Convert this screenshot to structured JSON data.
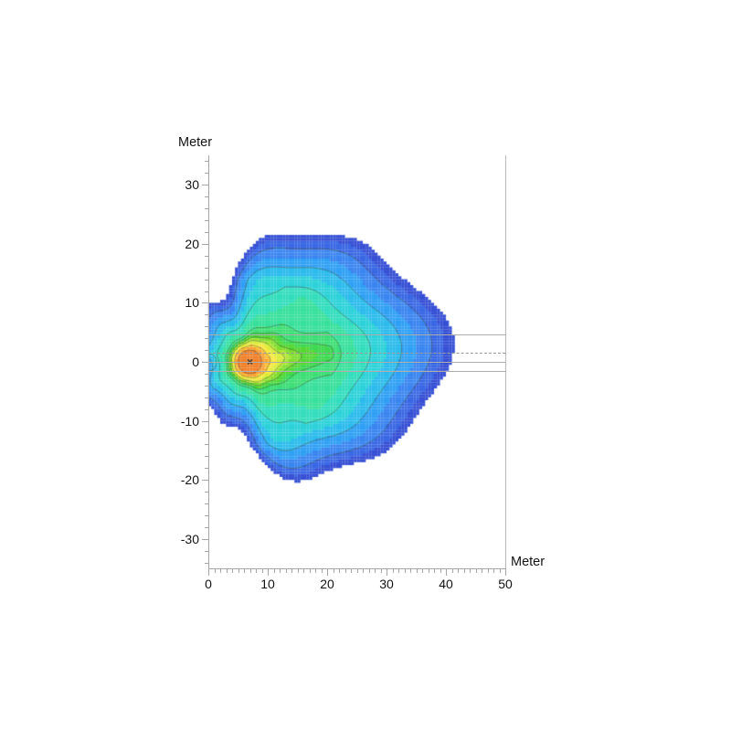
{
  "figure": {
    "background": "#ffffff"
  },
  "axes": {
    "y": {
      "label": "Meter",
      "range_m": [
        -35,
        35
      ],
      "major_ticks": [
        30,
        20,
        10,
        0,
        -10,
        -20,
        -30
      ],
      "minor_step_m": 2,
      "minor_range_m": [
        -34,
        34
      ]
    },
    "x": {
      "label": "Meter",
      "range_m": [
        0,
        50
      ],
      "major_ticks": [
        0,
        10,
        20,
        30,
        40,
        50
      ],
      "minor_step_m": 1
    },
    "axis_color": "#a6a6a6",
    "tick_color": "#a6a6a6",
    "label_color": "#131313"
  },
  "reference_lines": [
    {
      "y_m": 4.5,
      "style": "solid",
      "color": "#adadad"
    },
    {
      "y_m": 1.45,
      "style": "dashed",
      "color": "#999999"
    },
    {
      "y_m": -0.1,
      "style": "solid",
      "color": "#adadad"
    },
    {
      "y_m": -1.7,
      "style": "solid",
      "color": "#adadad"
    }
  ],
  "chart_data": {
    "type": "filled_contour",
    "title": "",
    "xlabel": "Meter",
    "ylabel": "Meter",
    "xlim": [
      0,
      50
    ],
    "ylim": [
      -35,
      35
    ],
    "grid": false,
    "legend": "none",
    "peak": {
      "x_m": 7,
      "y_m": 0
    },
    "extent": {
      "x_min_m": 0,
      "x_max_m": 40.5,
      "y_min_m": -22.5,
      "y_max_m": 23
    },
    "band_colors_center_to_edge": [
      "#f0802a",
      "#f9a138",
      "#fcc03c",
      "#f6e841",
      "#d8ec3a",
      "#abe534",
      "#7fdd2e",
      "#55d734",
      "#3dd84f",
      "#3cde75",
      "#39e09c",
      "#33ddbd",
      "#2dd2d9",
      "#2cbbec",
      "#30a0f4",
      "#3a85f0",
      "#3a68e4",
      "#3750d4"
    ],
    "band_edges_normalized": [
      0.22,
      0.26,
      0.285,
      0.315,
      0.34,
      0.355,
      0.374,
      0.393,
      0.408,
      0.445,
      0.52,
      0.59,
      0.667,
      0.742,
      0.816,
      0.89,
      0.95
    ],
    "contour_line_levels": [
      0,
      2,
      4,
      6,
      8,
      9,
      11,
      13,
      15
    ],
    "contour_line_color": "rgba(60,78,52,0.55)",
    "cell_size_m": 0.5,
    "shape": {
      "base": 17.2,
      "cos": 11.2,
      "cos2": 3.4,
      "sin": 1.4,
      "wobble": [
        {
          "a": 1.3,
          "f": 5,
          "p": 1.2
        },
        {
          "a": 0.9,
          "f": 9,
          "p": 0.4
        },
        {
          "a": 0.7,
          "f": 2,
          "p": 0.8
        }
      ],
      "core_radius_m": 9,
      "blend_start_m": 2,
      "blend_span_m": 12
    },
    "marker": {
      "x_m": 7,
      "y_m": 0,
      "glyph": "x",
      "color": "#2a2a2a"
    },
    "left_edge_ring": {
      "x_m": 0.45,
      "y_m": -0.1,
      "rx_m": 0.9,
      "ry_m": 1.4
    }
  }
}
